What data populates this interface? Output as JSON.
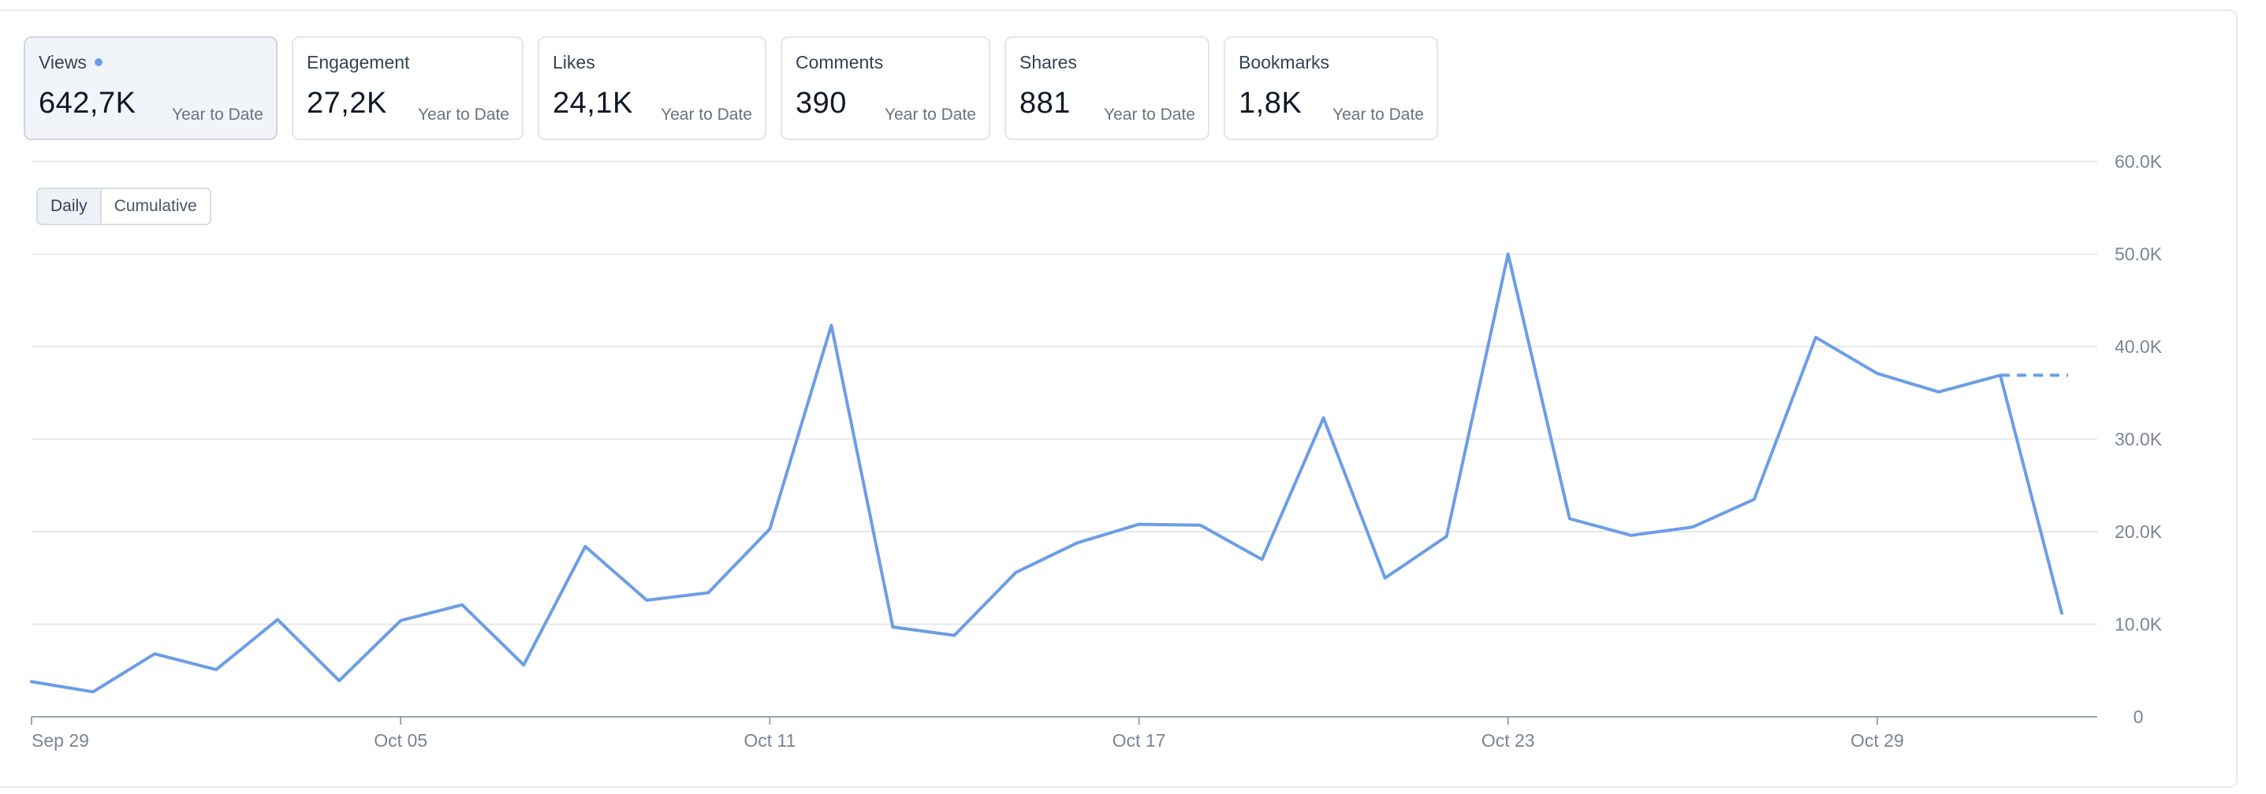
{
  "metrics": [
    {
      "label": "Views",
      "value": "642,7K",
      "sub": "Year to Date",
      "active": true
    },
    {
      "label": "Engagement",
      "value": "27,2K",
      "sub": "Year to Date",
      "active": false
    },
    {
      "label": "Likes",
      "value": "24,1K",
      "sub": "Year to Date",
      "active": false
    },
    {
      "label": "Comments",
      "value": "390",
      "sub": "Year to Date",
      "active": false
    },
    {
      "label": "Shares",
      "value": "881",
      "sub": "Year to Date",
      "active": false
    },
    {
      "label": "Bookmarks",
      "value": "1,8K",
      "sub": "Year to Date",
      "active": false
    }
  ],
  "toggle": {
    "daily": "Daily",
    "cumulative": "Cumulative",
    "selected": "Daily"
  },
  "colors": {
    "line": "#6c9ee6",
    "grid": "#e5e8ee",
    "axis": "#6b7280",
    "tick_text": "#7b8494"
  },
  "chart_data": {
    "type": "line",
    "series": [
      {
        "name": "Views",
        "values": [
          3800,
          2700,
          6800,
          5100,
          10500,
          3900,
          10400,
          12100,
          5600,
          18400,
          12600,
          13400,
          20300,
          42300,
          9700,
          8800,
          15600,
          18800,
          20800,
          20700,
          17000,
          32300,
          15000,
          19500,
          50000,
          21400,
          19600,
          20500,
          23500,
          41000,
          37100,
          35100,
          36900,
          11200
        ]
      }
    ],
    "projection": {
      "from_index": 32,
      "value": 36900,
      "style": "dashed"
    },
    "x_tick_labels": [
      {
        "index": 0,
        "label": "Sep 29"
      },
      {
        "index": 6,
        "label": "Oct 05"
      },
      {
        "index": 12,
        "label": "Oct 11"
      },
      {
        "index": 18,
        "label": "Oct 17"
      },
      {
        "index": 24,
        "label": "Oct 23"
      },
      {
        "index": 30,
        "label": "Oct 29"
      }
    ],
    "y_ticks": [
      0,
      10000,
      20000,
      30000,
      40000,
      50000,
      60000
    ],
    "y_tick_labels": [
      "0",
      "10.0K",
      "20.0K",
      "30.0K",
      "40.0K",
      "50.0K",
      "60.0K"
    ],
    "ylim": [
      0,
      60000
    ],
    "y_axis_side": "right",
    "grid": true,
    "title": "",
    "xlabel": "",
    "ylabel": ""
  }
}
